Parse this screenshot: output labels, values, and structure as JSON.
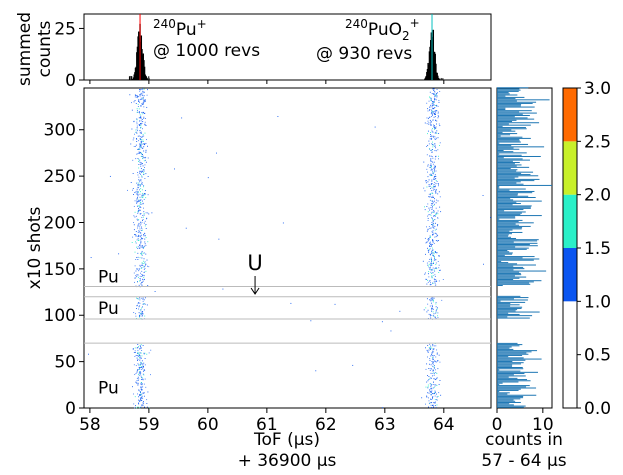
{
  "chart_data": [
    {
      "panel": "summed-tof-histogram",
      "type": "bar",
      "ylabel": "summed\ncounts",
      "ylim": [
        0,
        32
      ],
      "yticks": [
        0,
        25
      ],
      "xlim": [
        57.9,
        64.8
      ],
      "peaks": [
        {
          "species": "²⁴⁰Pu⁺",
          "label_sup": "240",
          "label_main": "Pu",
          "label_charge": "+",
          "revs_text": "@ 1000 revs",
          "center_us": 58.85,
          "max_counts": 30,
          "color": "#ff0000"
        },
        {
          "species": "²⁴⁰PuO₂⁺",
          "label_sup": "240",
          "label_main": "PuO",
          "label_sub": "2",
          "label_charge": "+",
          "revs_text": "@ 930 revs",
          "center_us": 63.8,
          "max_counts": 28,
          "color": "#00bfbf"
        }
      ]
    },
    {
      "panel": "shot-resolved-tof",
      "type": "scatter",
      "xlabel": "ToF (μs)",
      "xlabel2": "+ 36900 μs",
      "ylabel": "x10 shots",
      "xlim": [
        57.9,
        64.8
      ],
      "ylim": [
        0,
        345
      ],
      "xticks": [
        58,
        59,
        60,
        61,
        62,
        63,
        64
      ],
      "yticks": [
        0,
        50,
        100,
        150,
        200,
        250,
        300
      ],
      "bands": [
        {
          "label": "Pu",
          "y_from": 0,
          "y_to": 70
        },
        {
          "label": "Pu",
          "y_from": 96,
          "y_to": 120
        },
        {
          "label": "Pu",
          "y_from": 131,
          "y_to": 345
        }
      ],
      "separators_y": [
        70,
        96,
        120,
        131
      ],
      "pu_columns_us": [
        58.85,
        63.8
      ],
      "annotation": {
        "text": "U",
        "x_us": 60.8,
        "y_shots": 122
      }
    },
    {
      "panel": "counts-profile",
      "type": "bar",
      "xlabel": "counts in",
      "xlabel2": "57 - 64 μs",
      "xlim": [
        0,
        12
      ],
      "xticks": [
        0,
        10
      ],
      "ylim": [
        0,
        345
      ]
    },
    {
      "panel": "colorbar",
      "type": "heatmap",
      "ticks": [
        0.0,
        0.5,
        1.0,
        1.5,
        2.0,
        2.5,
        3.0
      ],
      "tick_labels": [
        "0.0",
        "0.5",
        "1.0",
        "1.5",
        "2.0",
        "2.5",
        "3.0"
      ],
      "segments": [
        {
          "from": 0.0,
          "to": 0.5,
          "color": "#ffffff"
        },
        {
          "from": 0.5,
          "to": 1.0,
          "color": "#ffffff"
        },
        {
          "from": 1.0,
          "to": 1.5,
          "color": "#0a55f0"
        },
        {
          "from": 1.5,
          "to": 2.0,
          "color": "#2af0c8"
        },
        {
          "from": 2.0,
          "to": 2.5,
          "color": "#c8f02a"
        },
        {
          "from": 2.5,
          "to": 3.0,
          "color": "#ff6a00"
        }
      ]
    }
  ]
}
